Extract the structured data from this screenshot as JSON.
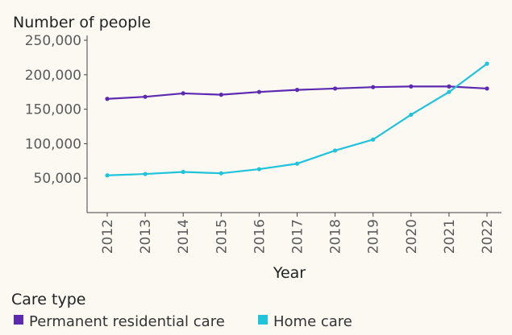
{
  "chart_data": {
    "type": "line",
    "ylabel": "Number of people",
    "xlabel": "Year",
    "x": [
      "2012",
      "2013",
      "2014",
      "2015",
      "2016",
      "2017",
      "2018",
      "2019",
      "2020",
      "2021",
      "2022"
    ],
    "yticks": [
      "50,000",
      "100,000",
      "150,000",
      "200,000",
      "250,000"
    ],
    "ytick_values": [
      50000,
      100000,
      150000,
      200000,
      250000
    ],
    "ylim": [
      0,
      250000
    ],
    "grid": false,
    "legend_title": "Care type",
    "legend_position": "bottom-left",
    "series": [
      {
        "name": "Permanent residential care",
        "color": "#5b2ab0",
        "values": [
          165000,
          168000,
          173000,
          171000,
          175000,
          178000,
          180000,
          182000,
          183000,
          183000,
          180000
        ]
      },
      {
        "name": "Home care",
        "color": "#1fc3da",
        "values": [
          54000,
          56000,
          59000,
          57000,
          63000,
          71000,
          90000,
          106000,
          142000,
          175000,
          216000
        ]
      }
    ]
  }
}
